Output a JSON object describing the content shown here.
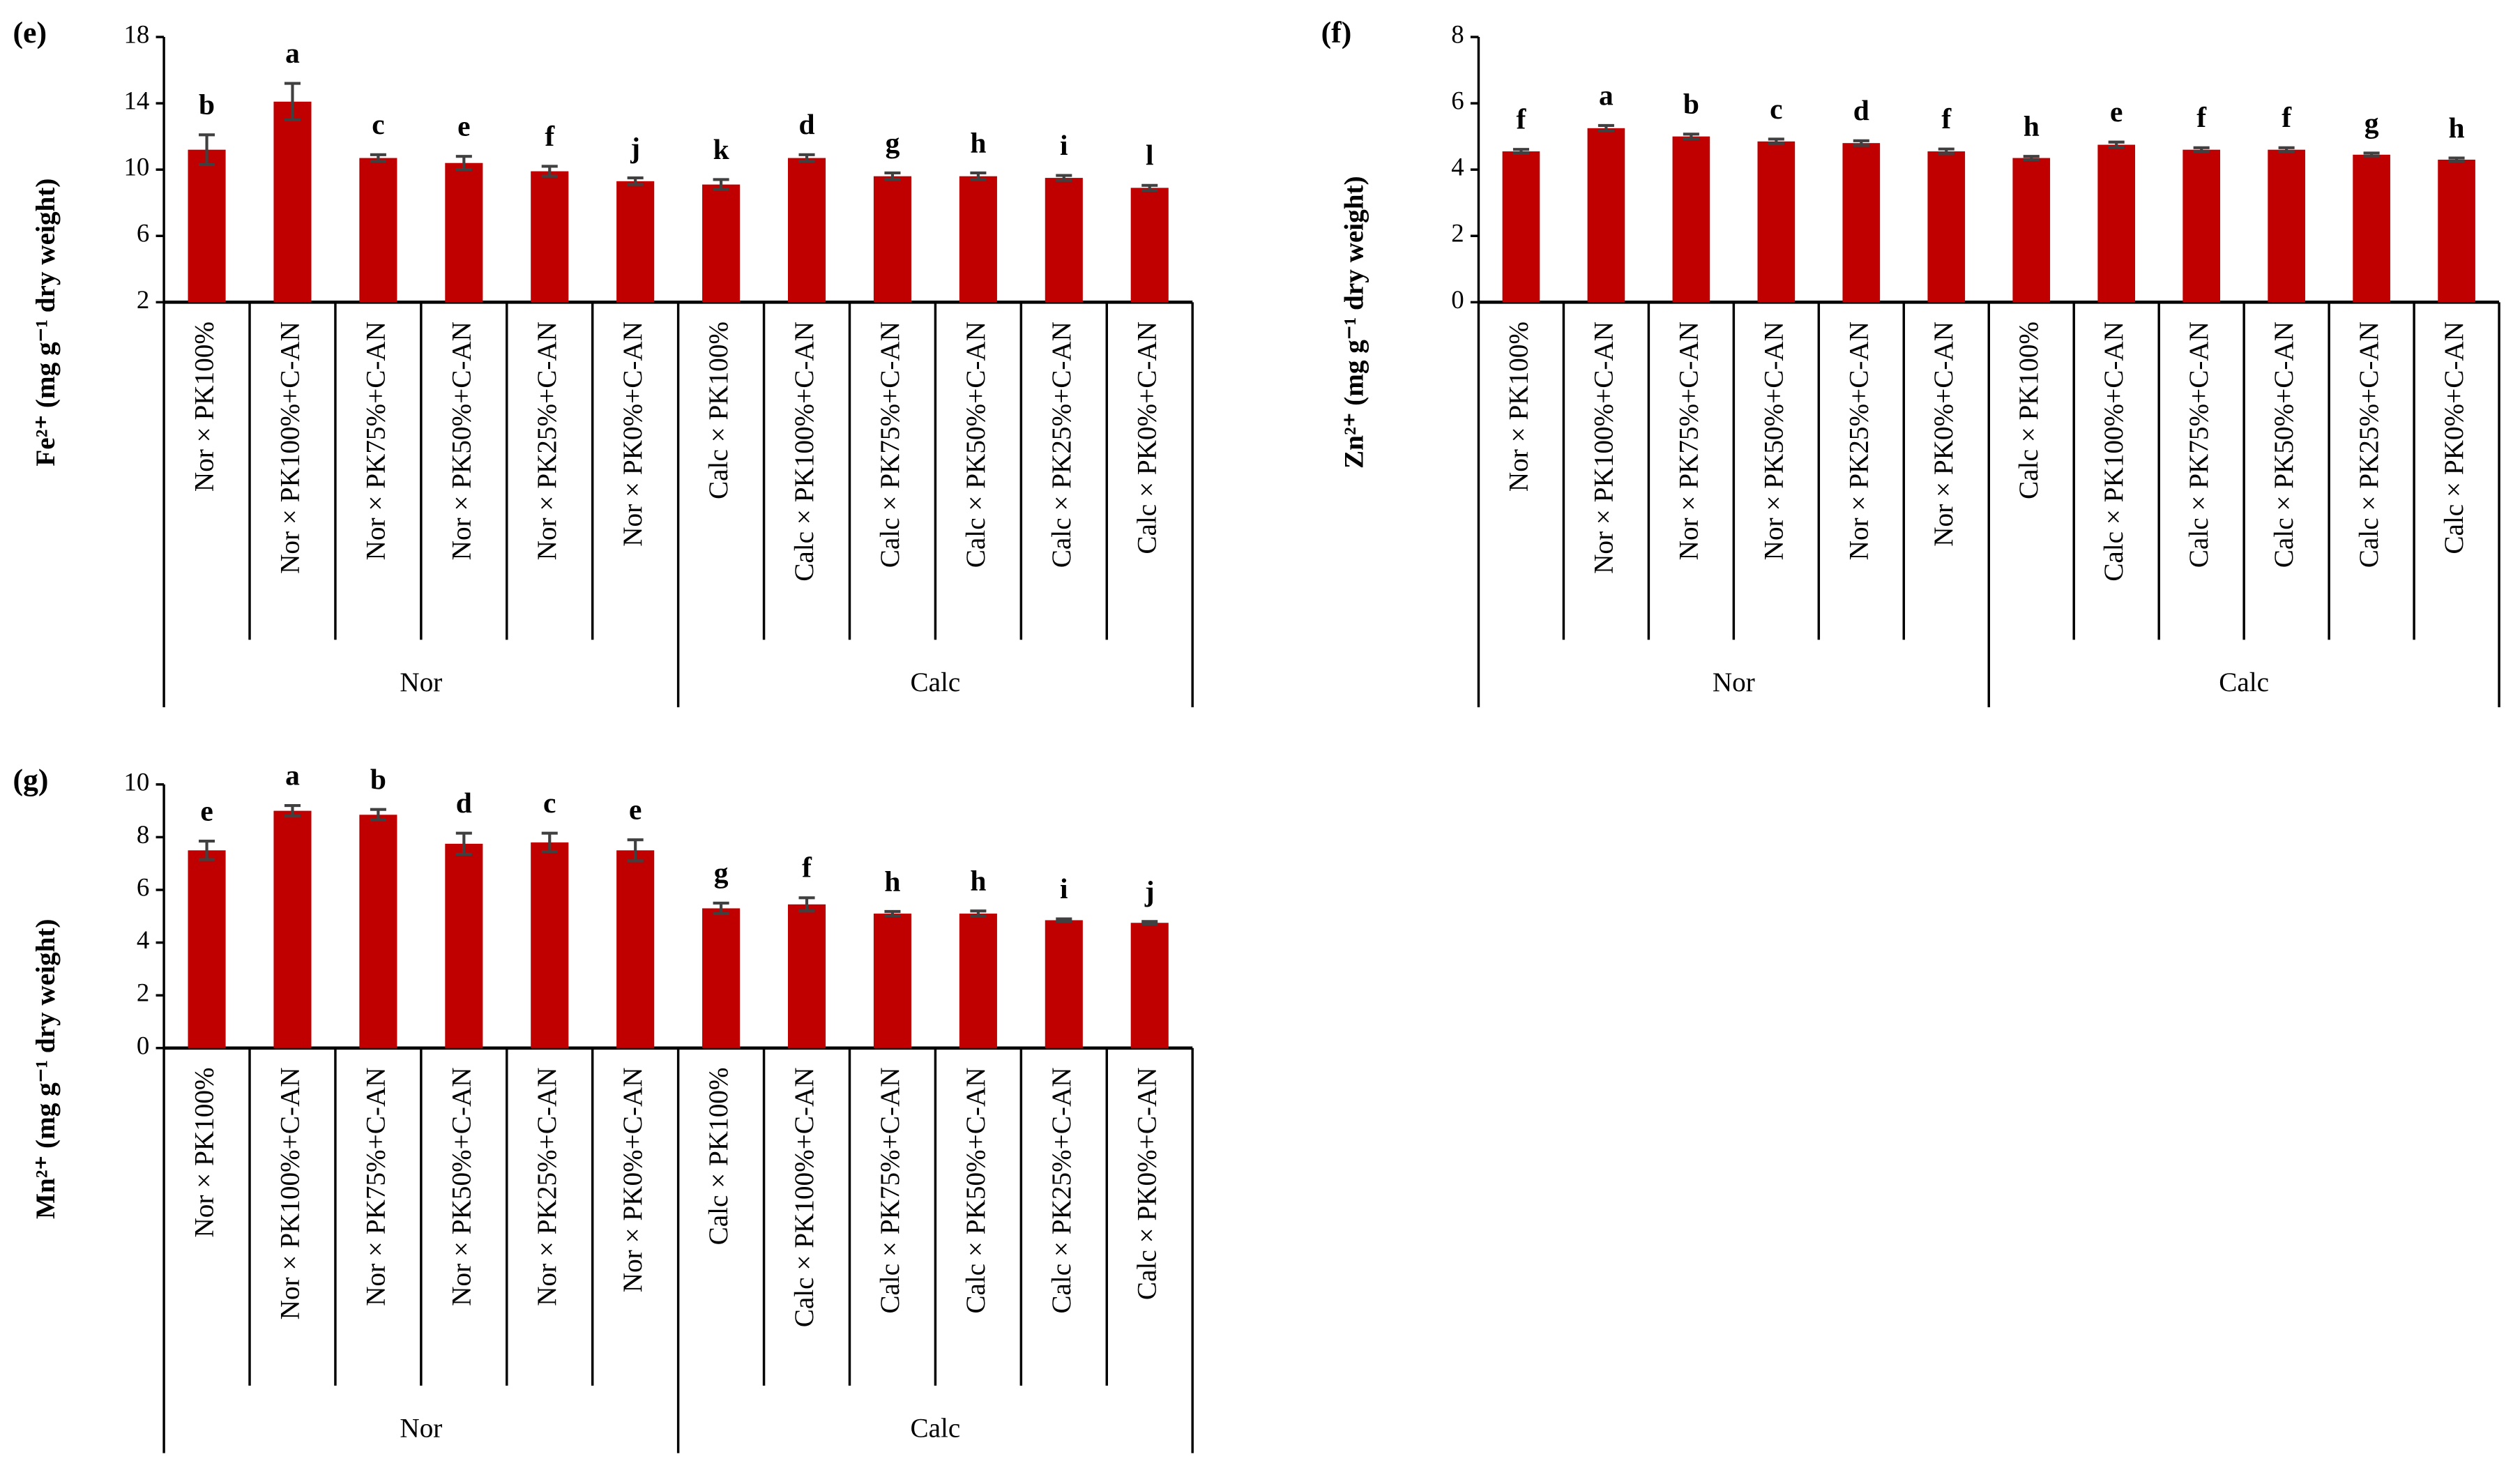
{
  "chart_data": [
    {
      "type": "bar",
      "panel": "(e)",
      "ylabel": "Fe²⁺ (mg g⁻¹ dry weight)",
      "categories": [
        "Nor × PK100%",
        "Nor × PK100%+C-AN",
        "Nor × PK75%+C-AN",
        "Nor × PK50%+C-AN",
        "Nor × PK25%+C-AN",
        "Nor × PK0%+C-AN",
        "Calc × PK100%",
        "Calc × PK100%+C-AN",
        "Calc × PK75%+C-AN",
        "Calc × PK50%+C-AN",
        "Calc × PK25%+C-AN",
        "Calc × PK0%+C-AN"
      ],
      "groups": [
        "Nor",
        "Calc"
      ],
      "values": [
        11.2,
        14.1,
        10.7,
        10.4,
        9.9,
        9.3,
        9.1,
        10.7,
        9.6,
        9.6,
        9.5,
        8.9
      ],
      "errors": [
        0.9,
        1.1,
        0.2,
        0.4,
        0.3,
        0.2,
        0.3,
        0.2,
        0.2,
        0.2,
        0.15,
        0.15
      ],
      "annotations": [
        "b",
        "a",
        "c",
        "e",
        "f",
        "j",
        "k",
        "d",
        "g",
        "h",
        "i",
        "l"
      ],
      "color": "#c00000",
      "ylim": [
        2,
        18
      ],
      "yticks": [
        2,
        6,
        10,
        14,
        18
      ]
    },
    {
      "type": "bar",
      "panel": "(f)",
      "ylabel": "Zn²⁺ (mg g⁻¹ dry weight)",
      "categories": [
        "Nor × PK100%",
        "Nor × PK100%+C-AN",
        "Nor × PK75%+C-AN",
        "Nor × PK50%+C-AN",
        "Nor × PK25%+C-AN",
        "Nor × PK0%+C-AN",
        "Calc × PK100%",
        "Calc × PK100%+C-AN",
        "Calc × PK75%+C-AN",
        "Calc × PK50%+C-AN",
        "Calc × PK25%+C-AN",
        "Calc × PK0%+C-AN"
      ],
      "groups": [
        "Nor",
        "Calc"
      ],
      "values": [
        4.55,
        5.25,
        5.0,
        4.85,
        4.8,
        4.55,
        4.35,
        4.75,
        4.6,
        4.6,
        4.45,
        4.3
      ],
      "errors": [
        0.06,
        0.08,
        0.07,
        0.07,
        0.07,
        0.07,
        0.05,
        0.08,
        0.06,
        0.06,
        0.05,
        0.05
      ],
      "annotations": [
        "f",
        "a",
        "b",
        "c",
        "d",
        "f",
        "h",
        "e",
        "f",
        "f",
        "g",
        "h"
      ],
      "color": "#c00000",
      "ylim": [
        0,
        8
      ],
      "yticks": [
        0,
        2,
        4,
        6,
        8
      ]
    },
    {
      "type": "bar",
      "panel": "(g)",
      "ylabel": "Mn²⁺ (mg g⁻¹ dry weight)",
      "categories": [
        "Nor × PK100%",
        "Nor × PK100%+C-AN",
        "Nor × PK75%+C-AN",
        "Nor × PK50%+C-AN",
        "Nor × PK25%+C-AN",
        "Nor × PK0%+C-AN",
        "Calc × PK100%",
        "Calc × PK100%+C-AN",
        "Calc × PK75%+C-AN",
        "Calc × PK50%+C-AN",
        "Calc × PK25%+C-AN",
        "Calc × PK0%+C-AN"
      ],
      "groups": [
        "Nor",
        "Calc"
      ],
      "values": [
        7.5,
        9.0,
        8.85,
        7.75,
        7.8,
        7.5,
        5.3,
        5.45,
        5.1,
        5.1,
        4.85,
        4.75
      ],
      "errors": [
        0.35,
        0.2,
        0.2,
        0.4,
        0.35,
        0.4,
        0.2,
        0.25,
        0.08,
        0.1,
        0.05,
        0.05
      ],
      "annotations": [
        "e",
        "a",
        "b",
        "d",
        "c",
        "e",
        "g",
        "f",
        "h",
        "h",
        "i",
        "j"
      ],
      "color": "#c00000",
      "ylim": [
        0,
        10
      ],
      "yticks": [
        0,
        2,
        4,
        6,
        8,
        10
      ]
    }
  ]
}
